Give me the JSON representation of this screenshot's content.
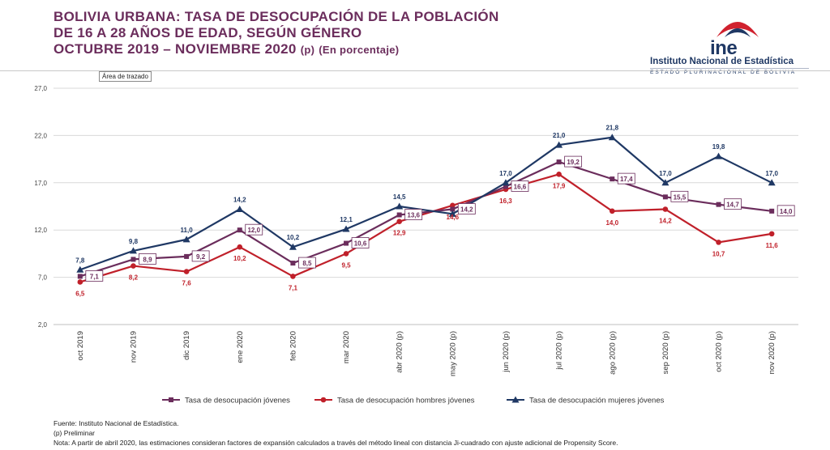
{
  "header": {
    "title_line1": "BOLIVIA URBANA: TASA DE DESOCUPACIÓN DE LA POBLACIÓN",
    "title_line2": "DE 16 A 28 AÑOS DE EDAD, SEGÚN GÉNERO",
    "title_line3": "OCTUBRE 2019 – NOVIEMBRE 2020",
    "title_suffix_p": "(p)",
    "title_suffix_unit": "(En porcentaje)"
  },
  "logo": {
    "acronym": "ine",
    "name": "Instituto Nacional de Estadística",
    "subtitle": "ESTADO PLURINACIONAL DE BOLIVIA"
  },
  "tooltip": "Área de trazado",
  "chart_data": {
    "type": "line",
    "categories": [
      "oct 2019",
      "nov 2019",
      "dic 2019",
      "ene 2020",
      "feb 2020",
      "mar 2020",
      "abr 2020 (p)",
      "may 2020 (p)",
      "jun 2020 (p)",
      "jul 2020 (p)",
      "ago 2020 (p)",
      "sep 2020 (p)",
      "oct 2020 (p)",
      "nov 2020 (p)"
    ],
    "y_ticks": [
      "2,0",
      "7,0",
      "12,0",
      "17,0",
      "22,0",
      "27,0"
    ],
    "ylim": [
      2,
      27
    ],
    "grid": "horizontal",
    "legend_position": "bottom",
    "series": [
      {
        "name": "Tasa de desocupación jóvenes",
        "color": "#6b2d5c",
        "marker": "square",
        "values": [
          7.1,
          8.9,
          9.2,
          12.0,
          8.5,
          10.6,
          13.6,
          14.2,
          16.6,
          19.2,
          17.4,
          15.5,
          14.7,
          14.0
        ],
        "labels": [
          "7,1",
          "8,9",
          "9,2",
          "12,0",
          "8,5",
          "10,6",
          "13,6",
          "14,2",
          "16,6",
          "19,2",
          "17,4",
          "15,5",
          "14,7",
          "14,0"
        ]
      },
      {
        "name": "Tasa de desocupación hombres jóvenes",
        "color": "#c0202a",
        "marker": "circle",
        "values": [
          6.5,
          8.2,
          7.6,
          10.2,
          7.1,
          9.5,
          12.9,
          14.6,
          16.3,
          17.9,
          14.0,
          14.2,
          10.7,
          11.6
        ],
        "labels": [
          "6,5",
          "8,2",
          "7,6",
          "10,2",
          "7,1",
          "9,5",
          "12,9",
          "14,6",
          "16,3",
          "17,9",
          "14,0",
          "14,2",
          "10,7",
          "11,6"
        ]
      },
      {
        "name": "Tasa de desocupación mujeres jóvenes",
        "color": "#1f3864",
        "marker": "triangle",
        "values": [
          7.8,
          9.8,
          11.0,
          14.2,
          10.2,
          12.1,
          14.5,
          13.7,
          17.0,
          21.0,
          21.8,
          17.0,
          19.8,
          17.0
        ],
        "labels": [
          "7,8",
          "9,8",
          "11,0",
          "14,2",
          "10,2",
          "12,1",
          "14,5",
          "",
          "17,0",
          "21,0",
          "21,8",
          "17,0",
          "19,8",
          "17,0"
        ]
      }
    ]
  },
  "footer": {
    "source": "Fuente: Instituto Nacional de Estadística.",
    "preliminary": "(p) Preliminar",
    "note": "Nota: A partir de abril 2020, las estimaciones consideran factores de expansión calculados a través del método lineal con distancia Ji-cuadrado con ajuste adicional de Propensity Score."
  }
}
